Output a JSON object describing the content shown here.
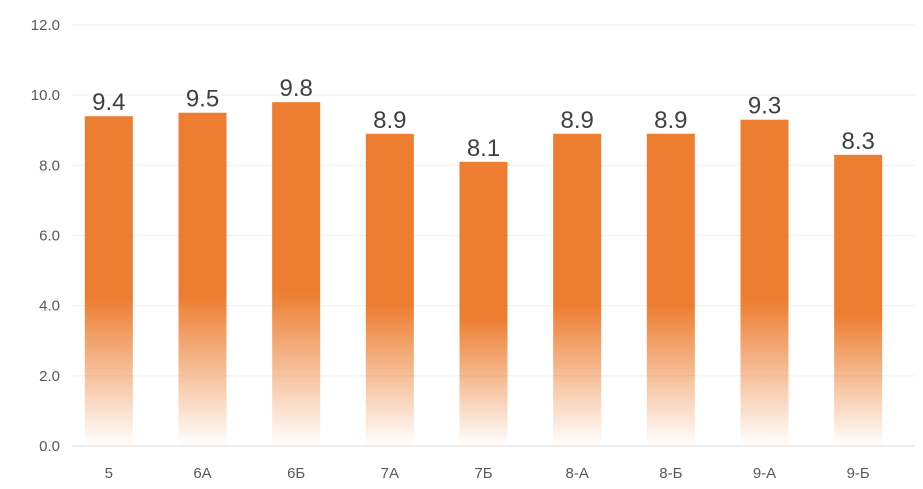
{
  "chart_data": {
    "type": "bar",
    "categories": [
      "5",
      "6А",
      "6Б",
      "7А",
      "7Б",
      "8-А",
      "8-Б",
      "9-А",
      "9-Б"
    ],
    "values": [
      9.4,
      9.5,
      9.8,
      8.9,
      8.1,
      8.9,
      8.9,
      9.3,
      8.3
    ],
    "data_labels": [
      "9.4",
      "9.5",
      "9.8",
      "8.9",
      "8.1",
      "8.9",
      "8.9",
      "9.3",
      "8.3"
    ],
    "yticks": [
      "0.0",
      "2.0",
      "4.0",
      "6.0",
      "8.0",
      "10.0",
      "12.0"
    ],
    "ylim": [
      0,
      12
    ],
    "grid": true,
    "legend": "none",
    "colors": {
      "bar": "#ED7D31"
    }
  }
}
